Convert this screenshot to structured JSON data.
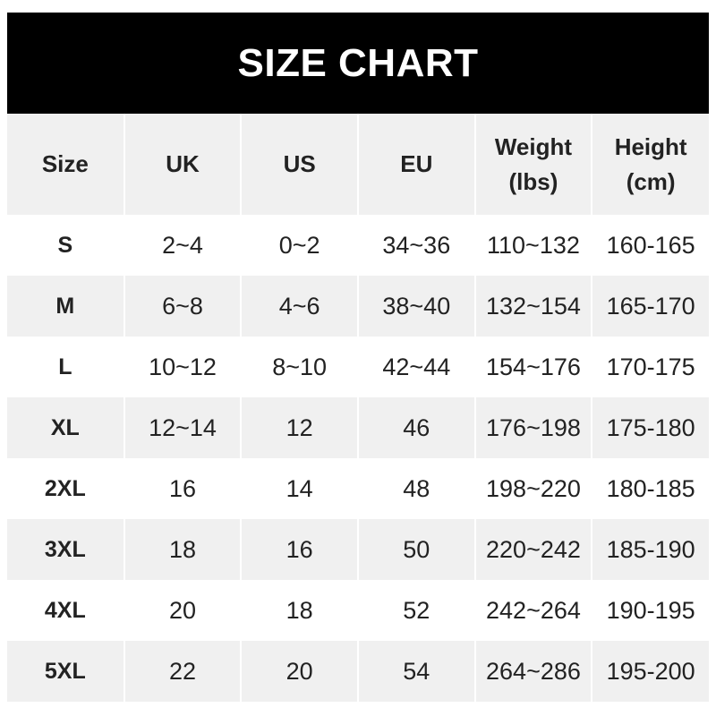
{
  "title": "SIZE CHART",
  "headers": [
    "Size",
    "UK",
    "US",
    "EU",
    "Weight\n(lbs)",
    "Height\n(cm)"
  ],
  "header_lines": [
    [
      "Size"
    ],
    [
      "UK"
    ],
    [
      "US"
    ],
    [
      "EU"
    ],
    [
      "Weight",
      "(lbs)"
    ],
    [
      "Height",
      "(cm)"
    ]
  ],
  "rows": [
    [
      "S",
      "2~4",
      "0~2",
      "34~36",
      "110~132",
      "160-165"
    ],
    [
      "M",
      "6~8",
      "4~6",
      "38~40",
      "132~154",
      "165-170"
    ],
    [
      "L",
      "10~12",
      "8~10",
      "42~44",
      "154~176",
      "170-175"
    ],
    [
      "XL",
      "12~14",
      "12",
      "46",
      "176~198",
      "175-180"
    ],
    [
      "2XL",
      "16",
      "14",
      "48",
      "198~220",
      "180-185"
    ],
    [
      "3XL",
      "18",
      "16",
      "50",
      "220~242",
      "185-190"
    ],
    [
      "4XL",
      "20",
      "18",
      "52",
      "242~264",
      "190-195"
    ],
    [
      "5XL",
      "22",
      "20",
      "54",
      "264~286",
      "195-200"
    ]
  ],
  "colors": {
    "title_bg": "#000000",
    "title_text": "#ffffff",
    "alt_row": "#f0f0f0"
  }
}
